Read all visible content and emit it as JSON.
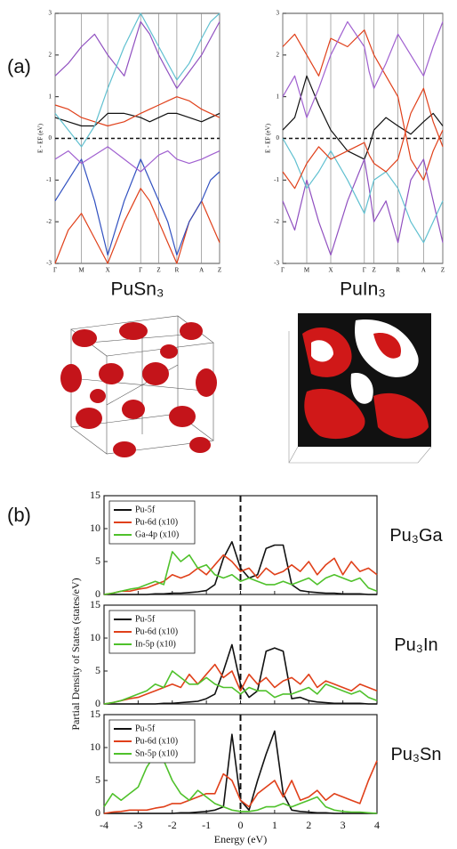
{
  "labels": {
    "a": "(a)",
    "b": "(b)"
  },
  "chart_data": [
    {
      "type": "line",
      "title": "PuSn₃",
      "ylabel": "E - EF (eV)",
      "x": [
        0,
        0.08,
        0.16,
        0.24,
        0.32,
        0.42,
        0.52,
        0.575,
        0.63,
        0.685,
        0.74,
        0.815,
        0.89,
        0.945,
        1
      ],
      "xlim": [
        0,
        1
      ],
      "xticks": [
        {
          "value": 0,
          "label": "Γ"
        },
        {
          "value": 0.16,
          "label": "M"
        },
        {
          "value": 0.32,
          "label": "X"
        },
        {
          "value": 0.52,
          "label": "Γ"
        },
        {
          "value": 0.63,
          "label": "Z"
        },
        {
          "value": 0.74,
          "label": "R"
        },
        {
          "value": 0.89,
          "label": "A"
        },
        {
          "value": 1,
          "label": "Z"
        }
      ],
      "ylim": [
        -3,
        3
      ],
      "yticks": [
        -3,
        -2,
        -1,
        0,
        1,
        2,
        3
      ],
      "grid": true,
      "hline": 0,
      "series": [
        {
          "color": "#111111",
          "values": [
            0.5,
            0.4,
            0.3,
            0.3,
            0.6,
            0.6,
            0.5,
            0.4,
            0.5,
            0.6,
            0.6,
            0.5,
            0.4,
            0.5,
            0.6
          ]
        },
        {
          "color": "#e0401a",
          "values": [
            -3,
            -2.2,
            -1.8,
            -2.4,
            -3,
            -2,
            -1.2,
            -1.5,
            -2,
            -2.5,
            -3,
            -2,
            -1.5,
            -2,
            -2.5
          ]
        },
        {
          "color": "#3050c0",
          "values": [
            -1.5,
            -1,
            -0.5,
            -1.5,
            -2.8,
            -1.5,
            -0.5,
            -1,
            -1.5,
            -2,
            -2.8,
            -2,
            -1.5,
            -1,
            -0.8
          ]
        },
        {
          "color": "#9050c0",
          "values": [
            1.5,
            1.8,
            2.2,
            2.5,
            2,
            1.5,
            2.8,
            2.5,
            2,
            1.6,
            1.2,
            1.6,
            2,
            2.4,
            2.8
          ]
        },
        {
          "color": "#a060d0",
          "values": [
            -0.5,
            -0.3,
            -0.6,
            -0.4,
            -0.2,
            -0.5,
            -0.8,
            -0.6,
            -0.4,
            -0.3,
            -0.5,
            -0.6,
            -0.5,
            -0.4,
            -0.3
          ]
        },
        {
          "color": "#e0401a",
          "values": [
            0.8,
            0.7,
            0.5,
            0.4,
            0.3,
            0.4,
            0.6,
            0.7,
            0.8,
            0.9,
            1,
            0.9,
            0.7,
            0.6,
            0.5
          ]
        },
        {
          "color": "#60c0d0",
          "values": [
            0.6,
            0.2,
            -0.2,
            0.3,
            1.2,
            2.2,
            3,
            2.6,
            2.2,
            1.8,
            1.4,
            1.8,
            2.4,
            2.8,
            3
          ]
        }
      ]
    },
    {
      "type": "line",
      "title": "PuIn₃",
      "ylabel": "E - EF (eV)",
      "x": [
        0,
        0.075,
        0.15,
        0.225,
        0.3,
        0.405,
        0.51,
        0.54,
        0.57,
        0.645,
        0.72,
        0.8,
        0.88,
        0.94,
        1
      ],
      "xlim": [
        0,
        1
      ],
      "xticks": [
        {
          "value": 0,
          "label": "Γ"
        },
        {
          "value": 0.15,
          "label": "M"
        },
        {
          "value": 0.3,
          "label": "X"
        },
        {
          "value": 0.51,
          "label": "Γ"
        },
        {
          "value": 0.57,
          "label": "Z"
        },
        {
          "value": 0.72,
          "label": "R"
        },
        {
          "value": 0.88,
          "label": "A"
        },
        {
          "value": 1,
          "label": "Z"
        }
      ],
      "ylim": [
        -3,
        3
      ],
      "yticks": [
        -3,
        -2,
        -1,
        0,
        1,
        2,
        3
      ],
      "grid": true,
      "hline": 0,
      "series": [
        {
          "color": "#111111",
          "values": [
            0.2,
            0.5,
            1.5,
            0.8,
            0.2,
            -0.3,
            -0.5,
            -0.2,
            0.2,
            0.5,
            0.3,
            0.1,
            0.4,
            0.6,
            0.3
          ]
        },
        {
          "color": "#e0401a",
          "values": [
            2.2,
            2.5,
            2,
            1.5,
            2.4,
            2.2,
            2.6,
            2.3,
            2,
            1.5,
            1,
            -0.5,
            -1,
            -0.3,
            0.2
          ]
        },
        {
          "color": "#9050c0",
          "values": [
            -1.5,
            -2.2,
            -1,
            -2,
            -2.8,
            -1.5,
            -0.5,
            -1.2,
            -2,
            -1.5,
            -2.5,
            -1,
            -0.5,
            -1.5,
            -2.5
          ]
        },
        {
          "color": "#a060d0",
          "values": [
            1,
            1.5,
            0.5,
            1.2,
            2,
            2.8,
            2.2,
            1.6,
            1.2,
            1.8,
            2.5,
            2,
            1.5,
            2.2,
            2.8
          ]
        },
        {
          "color": "#60c0d0",
          "values": [
            0,
            -0.5,
            -1.2,
            -0.8,
            -0.3,
            -1,
            -1.8,
            -1.4,
            -1,
            -0.8,
            -1.2,
            -2,
            -2.5,
            -2,
            -1.5
          ]
        },
        {
          "color": "#e0401a",
          "values": [
            -0.8,
            -1.2,
            -0.6,
            -0.2,
            -0.5,
            -0.3,
            -0.1,
            -0.4,
            -0.6,
            -0.8,
            -0.5,
            0.6,
            1.2,
            0.4,
            -0.2
          ]
        }
      ]
    },
    {
      "type": "line",
      "title": "Pu₃Ga",
      "x": [
        -4,
        -3.75,
        -3.5,
        -3.25,
        -3,
        -2.75,
        -2.5,
        -2.25,
        -2,
        -1.75,
        -1.5,
        -1.25,
        -1,
        -0.75,
        -0.5,
        -0.25,
        0,
        0.25,
        0.5,
        0.75,
        1,
        1.25,
        1.5,
        1.75,
        2,
        2.25,
        2.5,
        2.75,
        3,
        3.25,
        3.5,
        3.75,
        4
      ],
      "xlim": [
        -4,
        4
      ],
      "xticks": [
        -4,
        -3,
        -2,
        -1,
        0,
        1,
        2,
        3,
        4
      ],
      "ylim": [
        0,
        15
      ],
      "yticks": [
        0,
        5,
        10,
        15
      ],
      "vline": 0,
      "legend": "upper left",
      "series": [
        {
          "name": "Pu-5f",
          "color": "#111111",
          "values": [
            0,
            0,
            0,
            0,
            0,
            0,
            0.1,
            0.1,
            0.2,
            0.2,
            0.3,
            0.4,
            0.6,
            1.5,
            5.5,
            8,
            4,
            2.5,
            3,
            7,
            7.5,
            7.5,
            1.5,
            0.6,
            0.4,
            0.3,
            0.2,
            0.2,
            0.1,
            0.1,
            0.1,
            0,
            0
          ]
        },
        {
          "name": "Pu-6d (x10)",
          "color": "#e0401a",
          "values": [
            0,
            0.2,
            0.5,
            0.5,
            0.8,
            1,
            1.5,
            2,
            3,
            2.5,
            3,
            4,
            3,
            4.5,
            6,
            5,
            3.5,
            4,
            2.5,
            4,
            3,
            3.5,
            4.5,
            3.5,
            5,
            3,
            4.5,
            5.5,
            3,
            5,
            3.5,
            4,
            3
          ]
        },
        {
          "name": "Ga-4p (x10)",
          "color": "#4fc12b",
          "values": [
            0,
            0.2,
            0.5,
            0.8,
            1,
            1.5,
            2,
            1.5,
            6.5,
            5,
            6,
            4,
            4.5,
            3,
            2.5,
            3,
            2,
            2.5,
            2,
            1.5,
            1.5,
            2,
            1.5,
            2,
            2.5,
            1.5,
            2.5,
            3,
            2.5,
            2,
            2.5,
            1,
            0.5
          ]
        }
      ]
    },
    {
      "type": "line",
      "title": "Pu₃In",
      "ylabel": "Partial Density of States (states/eV)",
      "x": [
        -4,
        -3.75,
        -3.5,
        -3.25,
        -3,
        -2.75,
        -2.5,
        -2.25,
        -2,
        -1.75,
        -1.5,
        -1.25,
        -1,
        -0.75,
        -0.5,
        -0.25,
        0,
        0.25,
        0.5,
        0.75,
        1,
        1.25,
        1.5,
        1.75,
        2,
        2.25,
        2.5,
        2.75,
        3,
        3.25,
        3.5,
        3.75,
        4
      ],
      "xlim": [
        -4,
        4
      ],
      "xticks": [
        -4,
        -3,
        -2,
        -1,
        0,
        1,
        2,
        3,
        4
      ],
      "ylim": [
        0,
        15
      ],
      "yticks": [
        0,
        5,
        10,
        15
      ],
      "vline": 0,
      "legend": "upper left",
      "series": [
        {
          "name": "Pu-5f",
          "color": "#111111",
          "values": [
            0,
            0,
            0,
            0,
            0,
            0,
            0,
            0.1,
            0.1,
            0.2,
            0.3,
            0.4,
            0.8,
            1.5,
            5,
            9,
            3,
            1,
            2,
            8,
            8.5,
            8,
            0.8,
            1,
            0.5,
            0.3,
            0.2,
            0.1,
            0.1,
            0.1,
            0.1,
            0,
            0
          ]
        },
        {
          "name": "Pu-6d (x10)",
          "color": "#e0401a",
          "values": [
            0,
            0.2,
            0.5,
            0.8,
            1,
            1.5,
            2,
            2.5,
            3,
            2.5,
            4.5,
            3,
            4.5,
            6,
            4,
            5,
            2,
            4.5,
            3,
            4,
            2.5,
            3.5,
            4,
            3,
            4.5,
            2.5,
            3.5,
            3,
            2.5,
            2,
            3,
            2.5,
            2
          ]
        },
        {
          "name": "In-5p (x10)",
          "color": "#4fc12b",
          "values": [
            0,
            0.2,
            0.5,
            1,
            1.5,
            2,
            3,
            2.5,
            5,
            4,
            3,
            3,
            4,
            3,
            2.5,
            2.5,
            1.5,
            2.5,
            2,
            2,
            1,
            1.5,
            1.5,
            2,
            2.5,
            1.5,
            3,
            2.5,
            2,
            1.5,
            2,
            1,
            0.5
          ]
        }
      ]
    },
    {
      "type": "line",
      "title": "Pu₃Sn",
      "xlabel": "Energy (eV)",
      "x": [
        -4,
        -3.75,
        -3.5,
        -3.25,
        -3,
        -2.75,
        -2.5,
        -2.25,
        -2,
        -1.75,
        -1.5,
        -1.25,
        -1,
        -0.75,
        -0.5,
        -0.25,
        0,
        0.25,
        0.5,
        0.75,
        1,
        1.25,
        1.5,
        1.75,
        2,
        2.25,
        2.5,
        2.75,
        3,
        3.25,
        3.5,
        3.75,
        4
      ],
      "xlim": [
        -4,
        4
      ],
      "xticks": [
        -4,
        -3,
        -2,
        -1,
        0,
        1,
        2,
        3,
        4
      ],
      "ylim": [
        0,
        15
      ],
      "yticks": [
        0,
        5,
        10,
        15
      ],
      "vline": 0,
      "legend": "upper left",
      "series": [
        {
          "name": "Pu-5f",
          "color": "#111111",
          "values": [
            0,
            0,
            0,
            0,
            0,
            0,
            0,
            0,
            0,
            0.1,
            0.1,
            0.2,
            0.3,
            0.5,
            1,
            12,
            2,
            0.5,
            5,
            9,
            12.5,
            3,
            0.5,
            0.3,
            0.2,
            0.1,
            0.1,
            0,
            0,
            0,
            0,
            0,
            0
          ]
        },
        {
          "name": "Pu-6d (x10)",
          "color": "#e0401a",
          "values": [
            0,
            0.2,
            0.3,
            0.5,
            0.5,
            0.5,
            0.8,
            1,
            1.5,
            1.5,
            2,
            2.5,
            3,
            3,
            6,
            5,
            2,
            1,
            3,
            4,
            5,
            2.5,
            5,
            2,
            2.5,
            3.5,
            2,
            3,
            2.5,
            2,
            1.5,
            5,
            8
          ]
        },
        {
          "name": "Sn-5p (x10)",
          "color": "#4fc12b",
          "values": [
            1,
            3,
            2,
            3,
            4,
            7,
            9,
            8,
            5,
            3,
            2,
            3.5,
            2.5,
            1.5,
            1,
            0.5,
            0.3,
            0.3,
            0.5,
            1,
            1,
            1.5,
            1,
            1.5,
            2,
            2.5,
            1,
            0.5,
            0.3,
            0.2,
            0.2,
            0.1,
            0
          ]
        }
      ]
    }
  ]
}
